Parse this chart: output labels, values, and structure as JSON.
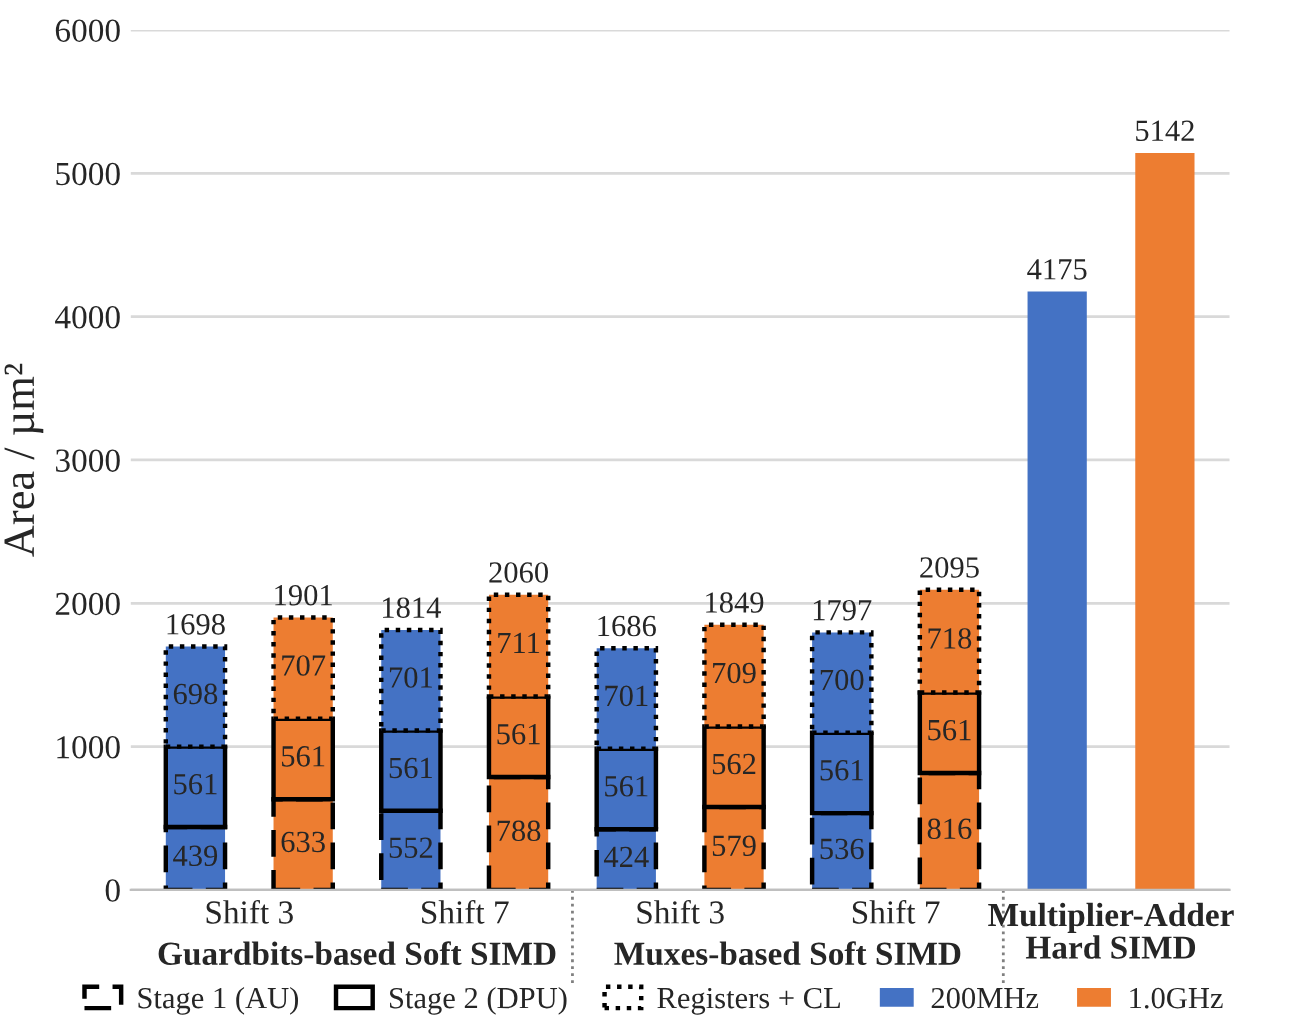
{
  "chart_data": {
    "type": "bar",
    "stacked": true,
    "ylabel": "Area / µm²",
    "categories": [
      "Shift 3",
      null,
      "Shift 7",
      null,
      "Shift 3",
      null,
      "Shift 7",
      null,
      null,
      null
    ],
    "annotations": [
      "Guardbits-based Soft SIMD",
      "Muxes-based Soft SIMD",
      "Multiplier-Adder\nHard SIMD"
    ],
    "series": [
      {
        "name": "Stage 1 (AU)",
        "line_style": "dashed",
        "colors": [
          "#4472c4",
          "#ed7d31",
          "#4472c4",
          "#ed7d31",
          "#4472c4",
          "#ed7d31",
          "#4472c4",
          "#ed7d31",
          "#4472c4",
          "#ed7d31"
        ],
        "values": [
          439,
          633,
          552,
          788,
          424,
          579,
          536,
          816,
          null,
          null
        ]
      },
      {
        "name": "Stage 2 (DPU)",
        "line_style": "solid",
        "colors": [
          "#4472c4",
          "#ed7d31",
          "#4472c4",
          "#ed7d31",
          "#4472c4",
          "#ed7d31",
          "#4472c4",
          "#ed7d31",
          "#4472c4",
          "#ed7d31"
        ],
        "values": [
          561,
          561,
          561,
          561,
          561,
          562,
          561,
          561,
          null,
          null
        ]
      },
      {
        "name": "Registers + CL",
        "line_style": "dotted",
        "colors": [
          "#4472c4",
          "#ed7d31",
          "#4472c4",
          "#ed7d31",
          "#4472c4",
          "#ed7d31",
          "#4472c4",
          "#ed7d31",
          "#4472c4",
          "#ed7d31"
        ],
        "values": [
          698,
          707,
          701,
          711,
          701,
          709,
          700,
          718,
          null,
          null
        ]
      },
      {
        "name": "200MHz",
        "color": "#4472c4",
        "values": [
          null,
          null,
          null,
          null,
          null,
          null,
          null,
          null,
          4175,
          null
        ]
      },
      {
        "name": "1.0GHz",
        "color": "#ed7d31",
        "values": [
          null,
          null,
          null,
          null,
          null,
          null,
          null,
          null,
          null,
          5142
        ]
      }
    ],
    "totals": [
      "1698",
      "1901",
      "1814",
      "2060",
      "1686",
      "1849",
      "1797",
      "2095",
      null,
      null
    ],
    "data_labels": true,
    "ylim": [
      0,
      6000
    ],
    "yticks": [
      0,
      1000,
      2000,
      3000,
      4000,
      5000,
      6000
    ],
    "grid": "y",
    "legend": "bottom"
  }
}
